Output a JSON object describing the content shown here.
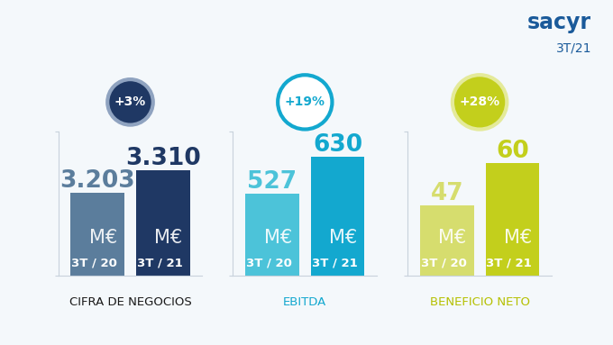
{
  "header": {
    "logo": "sacyr",
    "period": "3T/21"
  },
  "chart_data": [
    {
      "type": "bar",
      "title": "CIFRA DE NEGOCIOS",
      "categories": [
        "3T / 20",
        "3T / 21"
      ],
      "values": [
        3203,
        3310
      ],
      "value_labels": [
        "3.203",
        "3.310"
      ],
      "data_labels": true,
      "colors": [
        "#5b7d9c",
        "#1f3864"
      ],
      "ylim": [
        2800,
        3500
      ],
      "yticks": [
        2800,
        3500
      ],
      "tick_labels": false,
      "annotations": {
        "change": "+3%",
        "unit": "M€"
      }
    },
    {
      "type": "bar",
      "title": "EBITDA",
      "categories": [
        "3T / 20",
        "3T / 21"
      ],
      "values": [
        527,
        630
      ],
      "value_labels": [
        "527",
        "630"
      ],
      "data_labels": true,
      "colors": [
        "#4cc3d9",
        "#13a8cf"
      ],
      "ylim": [
        300,
        700
      ],
      "yticks": [
        300,
        700
      ],
      "tick_labels": false,
      "annotations": {
        "change": "+19%",
        "unit": "M€"
      }
    },
    {
      "type": "bar",
      "title": "BENEFICIO NETO",
      "categories": [
        "3T / 20",
        "3T / 21"
      ],
      "values": [
        47,
        60
      ],
      "value_labels": [
        "47",
        "60"
      ],
      "data_labels": true,
      "colors": [
        "#d6dd6e",
        "#c3cf1c"
      ],
      "ylim": [
        25,
        70
      ],
      "yticks": [
        25,
        70
      ],
      "tick_labels": false,
      "annotations": {
        "change": "+28%",
        "unit": "M€"
      }
    }
  ]
}
